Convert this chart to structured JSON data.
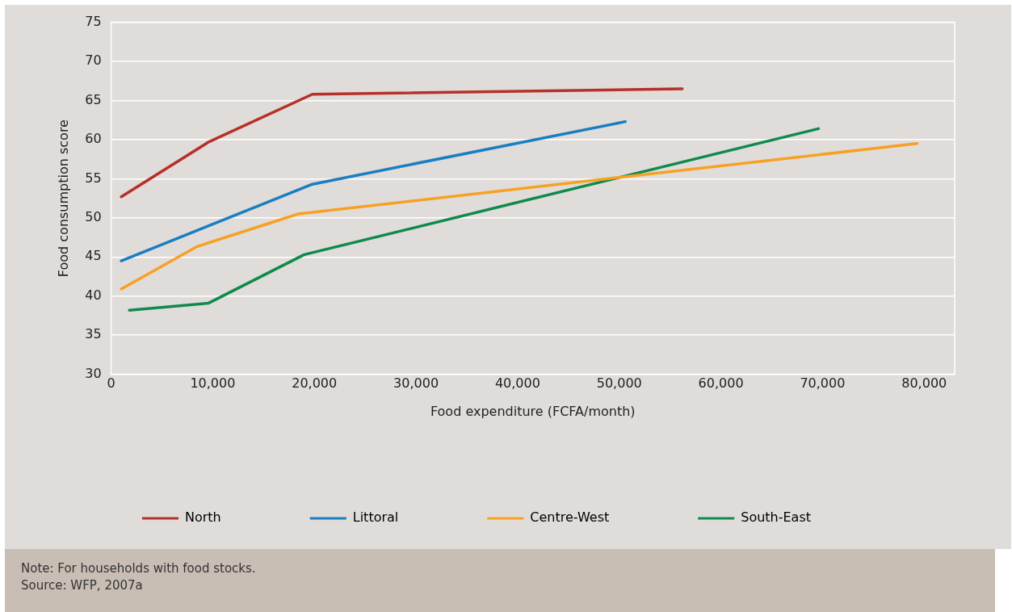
{
  "chart_data": {
    "type": "line",
    "xlabel": "Food expenditure (FCFA/month)",
    "ylabel": "Food consumption score",
    "xlim": [
      0,
      83000
    ],
    "xticks": [
      0,
      {
        "value": 10000,
        "label": "10,000"
      },
      {
        "value": 20000,
        "label": "20,000"
      },
      {
        "value": 30000,
        "label": "30,000"
      },
      {
        "value": 40000,
        "label": "40,000"
      },
      {
        "value": 50000,
        "label": "50,000"
      },
      {
        "value": 60000,
        "label": "60,000"
      },
      {
        "value": 70000,
        "label": "70,000"
      },
      {
        "value": 80000,
        "label": "80,000"
      }
    ],
    "ylim": [
      30,
      75
    ],
    "yticks": [
      30,
      35,
      40,
      45,
      50,
      55,
      60,
      65,
      70,
      75
    ],
    "grid": "y",
    "legend": "bottom",
    "marker": "none",
    "line_style": "solid",
    "series": [
      {
        "name": "North",
        "color": "#b5312a",
        "x": [
          1000,
          9600,
          19800,
          56200
        ],
        "values": [
          52.7,
          59.7,
          65.8,
          66.5
        ]
      },
      {
        "name": "Littoral",
        "color": "#1a7ec0",
        "x": [
          1000,
          19800,
          50600
        ],
        "values": [
          44.5,
          54.3,
          62.3
        ]
      },
      {
        "name": "Centre-West",
        "color": "#f7a124",
        "x": [
          1000,
          8400,
          18400,
          79300
        ],
        "values": [
          40.9,
          46.3,
          50.5,
          59.5
        ]
      },
      {
        "name": "South-East",
        "color": "#0f8a4d",
        "x": [
          1800,
          9600,
          19000,
          69600
        ],
        "values": [
          38.2,
          39.1,
          45.3,
          61.4
        ]
      }
    ],
    "annotations": [
      "Note: For households with food stocks.",
      "Source: WFP, 2007a"
    ]
  }
}
